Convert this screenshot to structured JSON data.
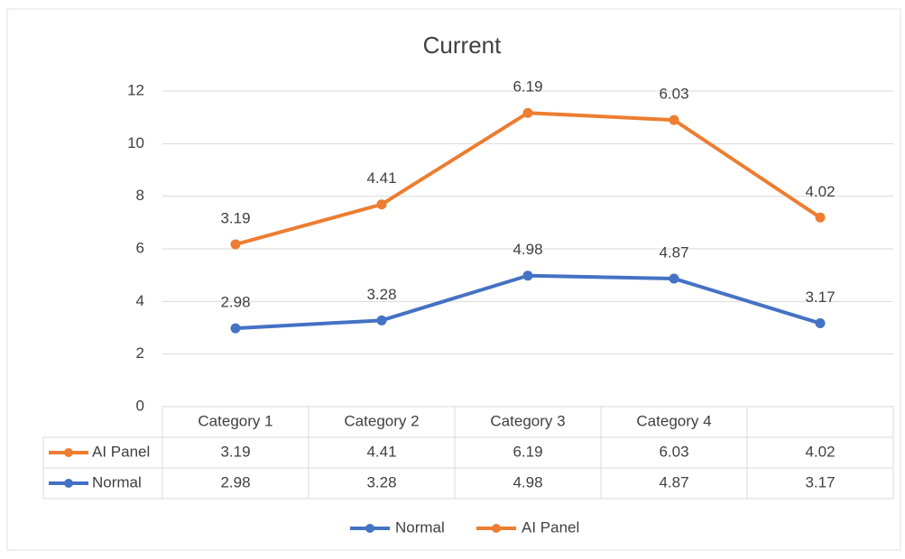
{
  "chart_data": {
    "type": "line",
    "stacked": true,
    "title": "Current",
    "categories": [
      "Category 1",
      "Category 2",
      "Category 3",
      "Category 4",
      null
    ],
    "series": [
      {
        "name": "Normal",
        "color": "#4472c4",
        "values": [
          2.98,
          3.28,
          4.98,
          4.87,
          3.17
        ]
      },
      {
        "name": "AI Panel",
        "color": "#ed7d31",
        "values": [
          3.19,
          4.41,
          6.19,
          6.03,
          4.02
        ]
      }
    ],
    "ylim": [
      0,
      12
    ],
    "yticks": [
      0,
      2,
      4,
      6,
      8,
      10,
      12
    ],
    "grid": true,
    "legend": "bottom",
    "data_table": true
  }
}
